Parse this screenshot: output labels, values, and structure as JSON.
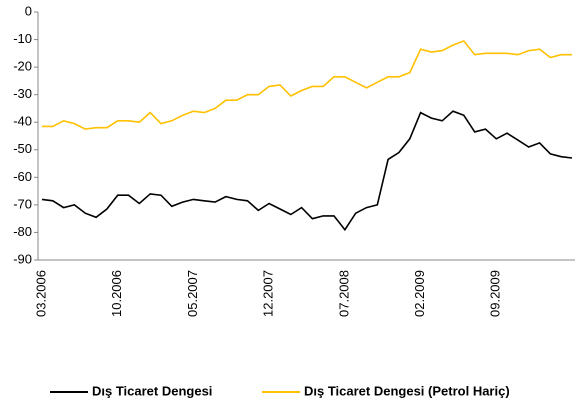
{
  "chart_data": {
    "type": "line",
    "categories": [
      "03.2006",
      null,
      null,
      null,
      null,
      null,
      null,
      "10.2006",
      null,
      null,
      null,
      null,
      null,
      null,
      "05.2007",
      null,
      null,
      null,
      null,
      null,
      null,
      "12.2007",
      null,
      null,
      null,
      null,
      null,
      null,
      "07.2008",
      null,
      null,
      null,
      null,
      null,
      null,
      "02.2009",
      null,
      null,
      null,
      null,
      null,
      null,
      "09.2009",
      null,
      null,
      null,
      null,
      null,
      null,
      null
    ],
    "series": [
      {
        "name": "Dış Ticaret Dengesi",
        "color": "#000000",
        "values": [
          -68,
          -68.5,
          -71,
          -70,
          -73,
          -74.5,
          -71.5,
          -66.5,
          -66.5,
          -69.5,
          -66,
          -66.5,
          -70.5,
          -69,
          -68,
          -68.5,
          -69,
          -67,
          -68,
          -68.5,
          -72,
          -69.5,
          -71.5,
          -73.5,
          -71,
          -75,
          -74,
          -74,
          -79,
          -73,
          -71,
          -70,
          -53.5,
          -51,
          -46,
          -36.5,
          -38.5,
          -39.5,
          -36,
          -37.5,
          -43.5,
          -42.5,
          -46,
          -44,
          -46.5,
          -49,
          -47.5,
          -51.5,
          -52.5,
          -53
        ]
      },
      {
        "name": "Dış Ticaret Dengesi (Petrol Hariç)",
        "color": "#ffc000",
        "values": [
          -41.5,
          -41.5,
          -39.5,
          -40.5,
          -42.5,
          -42,
          -42,
          -39.5,
          -39.5,
          -40,
          -36.5,
          -40.5,
          -39.5,
          -37.5,
          -36,
          -36.5,
          -35,
          -32,
          -32,
          -30,
          -30,
          -27,
          -26.5,
          -30.5,
          -28.5,
          -27,
          -27,
          -23.5,
          -23.5,
          -25.5,
          -27.5,
          -25.5,
          -23.5,
          -23.5,
          -22,
          -13.5,
          -14.5,
          -14,
          -12,
          -10.5,
          -15.5,
          -15,
          -15,
          -15,
          -15.5,
          -14,
          -13.5,
          -16.5,
          -15.5,
          -15.5
        ]
      }
    ],
    "ylim": [
      -90,
      0
    ],
    "yticks": [
      0,
      -10,
      -20,
      -30,
      -40,
      -50,
      -60,
      -70,
      -80,
      -90
    ],
    "grid": false,
    "legend": "bottom"
  }
}
